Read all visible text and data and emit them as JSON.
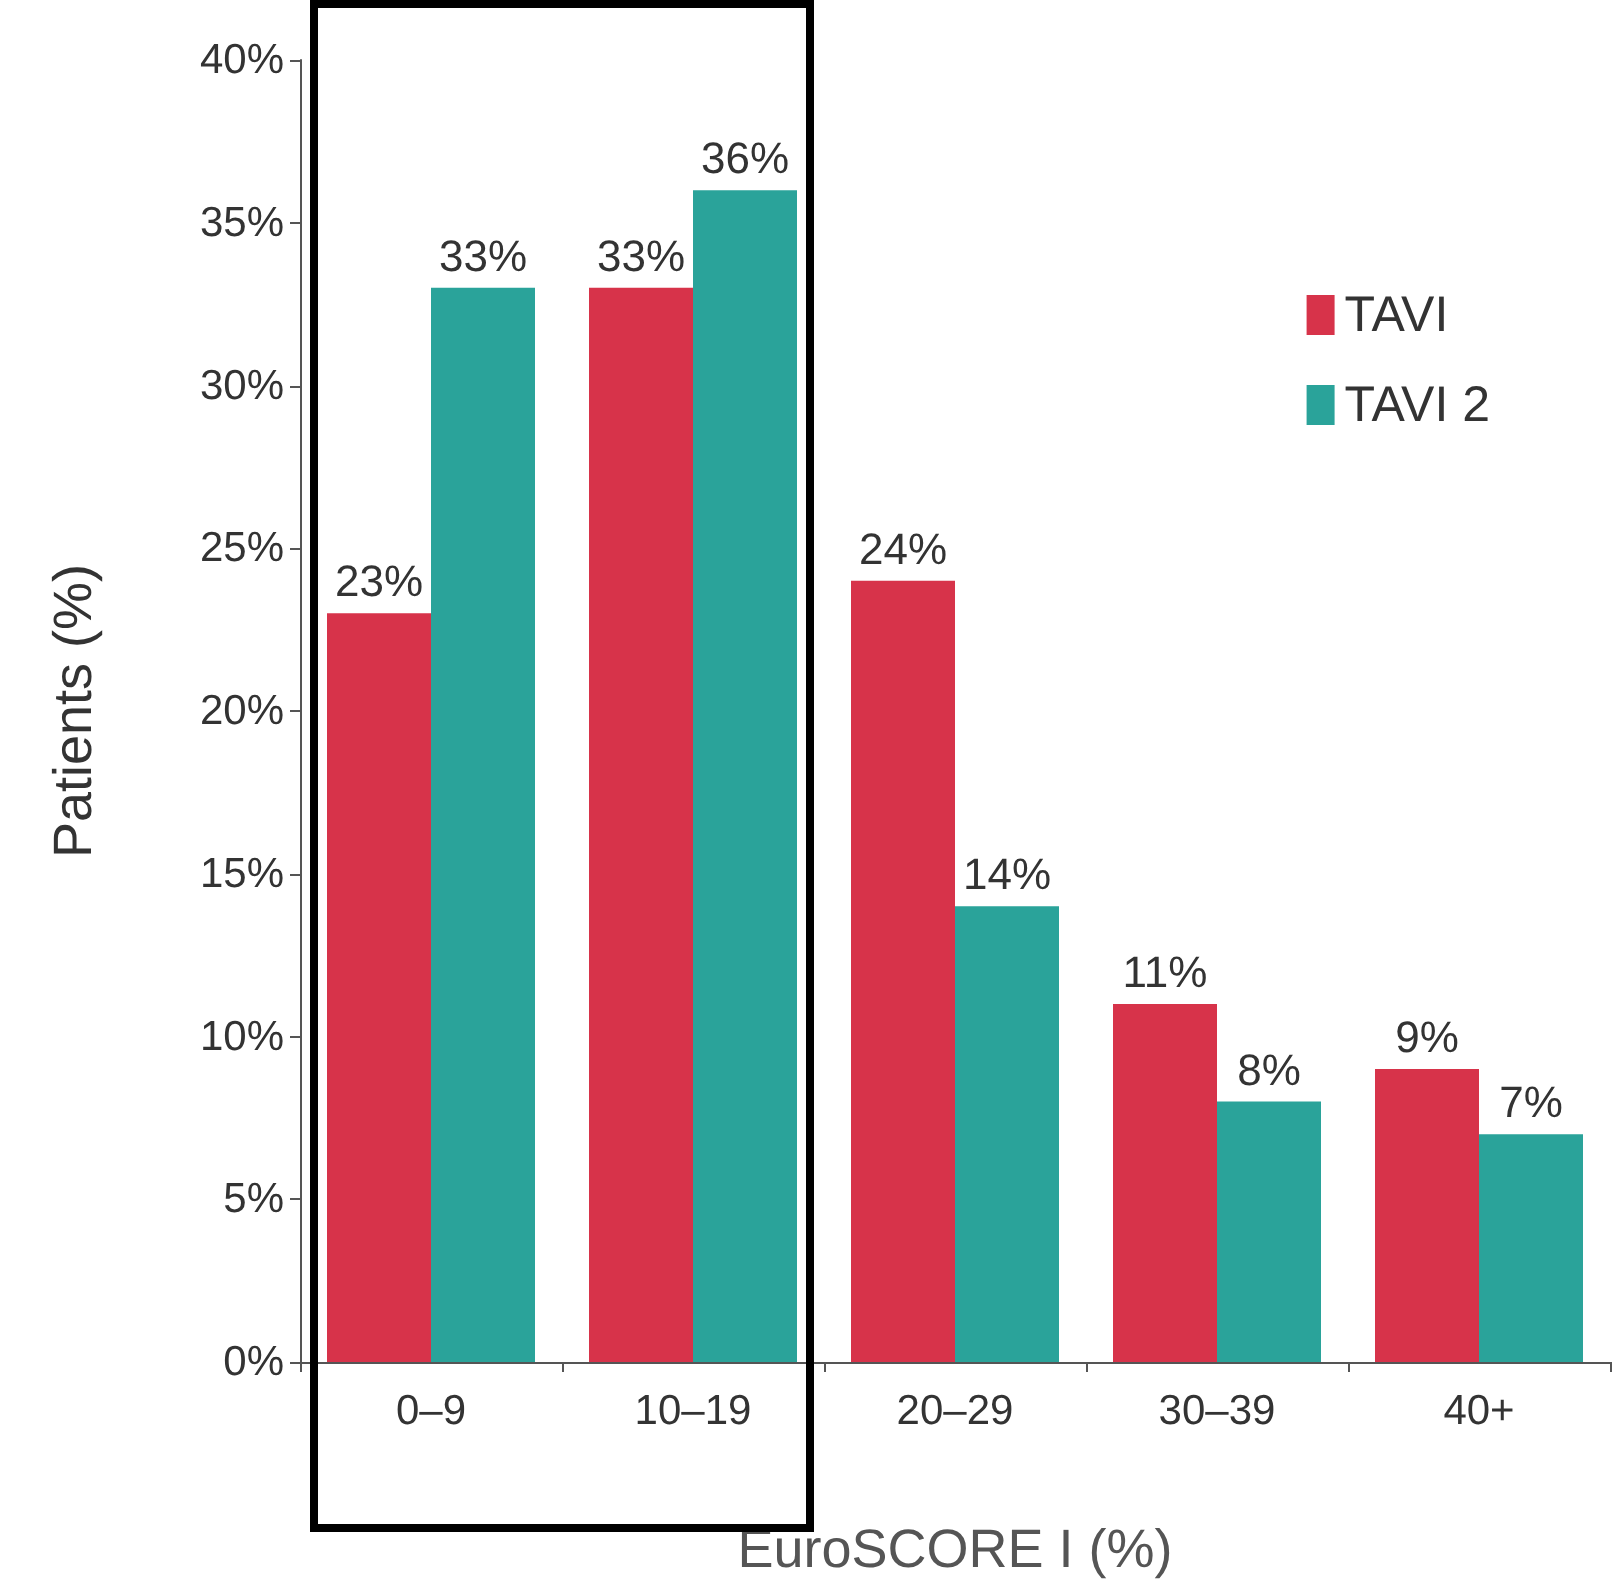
{
  "chart_data": {
    "type": "bar",
    "xlabel": "EuroSCORE I (%)",
    "ylabel": "Patients (%)",
    "categories": [
      "0–9",
      "10–19",
      "20–29",
      "30–39",
      "40+"
    ],
    "series": [
      {
        "name": "TAVI",
        "color": "#d7334a",
        "values": [
          23,
          33,
          24,
          11,
          9
        ],
        "value_labels": [
          "23%",
          "33%",
          "24%",
          "11%",
          "9%"
        ]
      },
      {
        "name": "TAVI 2",
        "color": "#2aa39a",
        "values": [
          33,
          36,
          14,
          8,
          7
        ],
        "value_labels": [
          "33%",
          "36%",
          "14%",
          "8%",
          "7%"
        ]
      }
    ],
    "ylim": [
      0,
      40
    ],
    "yticks": [
      {
        "value": 0,
        "label": "0%"
      },
      {
        "value": 5,
        "label": "5%"
      },
      {
        "value": 10,
        "label": "10%"
      },
      {
        "value": 15,
        "label": "15%"
      },
      {
        "value": 20,
        "label": "20%"
      },
      {
        "value": 25,
        "label": "25%"
      },
      {
        "value": 30,
        "label": "30%"
      },
      {
        "value": 35,
        "label": "35%"
      },
      {
        "value": 40,
        "label": "40%"
      }
    ],
    "legend": "top right",
    "grid": false
  }
}
